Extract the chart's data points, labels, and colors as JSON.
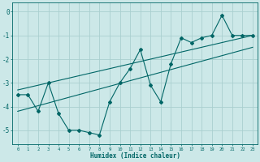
{
  "xlabel": "Humidex (Indice chaleur)",
  "bg_color": "#cce8e8",
  "grid_color": "#aacfcf",
  "line_color": "#006666",
  "xlim": [
    -0.5,
    23.5
  ],
  "ylim": [
    -5.6,
    0.4
  ],
  "xticks": [
    0,
    1,
    2,
    3,
    4,
    5,
    6,
    7,
    8,
    9,
    10,
    11,
    12,
    13,
    14,
    15,
    16,
    17,
    18,
    19,
    20,
    21,
    22,
    23
  ],
  "yticks": [
    0,
    -1,
    -2,
    -3,
    -4,
    -5
  ],
  "main_data_x": [
    0,
    1,
    2,
    3,
    4,
    5,
    6,
    7,
    8,
    9,
    10,
    11,
    12,
    13,
    14,
    15,
    16,
    17,
    18,
    19,
    20,
    21,
    22,
    23
  ],
  "main_data_y": [
    -3.5,
    -3.5,
    -4.2,
    -3.0,
    -4.3,
    -5.0,
    -5.0,
    -5.1,
    -5.2,
    -3.8,
    -3.0,
    -2.4,
    -1.6,
    -3.1,
    -3.8,
    -2.2,
    -1.1,
    -1.3,
    -1.1,
    -1.0,
    -0.15,
    -1.0,
    -1.0,
    -1.0
  ],
  "upper_line_x": [
    0,
    23
  ],
  "upper_line_y": [
    -3.3,
    -1.0
  ],
  "lower_line_x": [
    0,
    23
  ],
  "lower_line_y": [
    -4.2,
    -1.5
  ],
  "marker": "D",
  "markersize": 2,
  "linewidth": 0.8
}
